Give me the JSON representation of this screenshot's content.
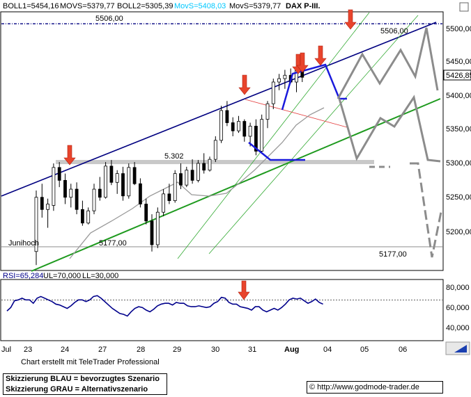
{
  "header": {
    "boll1": "BOLL1=5454,16",
    "movs1": "MOVS=5379,77",
    "boll2": "BOLL2=5305,39",
    "movs2": "MovS=5408,03",
    "movs3": "MovS=5379,77",
    "title": "DAX P-III."
  },
  "colors": {
    "blue_scenario": "#1a1adc",
    "grey_scenario": "#8c8c8c",
    "trend_navy": "#000080",
    "trend_green": "#1e9a1e",
    "channel_green": "#33aa33",
    "arrow_red": "#e8442c",
    "movs_cyan": "#00c8ff",
    "rsi_line": "#00008b"
  },
  "chart_data": [
    {
      "type": "candlestick",
      "title": "DAX P-III.",
      "y_axis_side": "right",
      "yticks": [
        "5500,00",
        "5450,00",
        "5400,00",
        "5350,00",
        "5300,00",
        "5250,00",
        "5200,00"
      ],
      "ylim": [
        5150,
        5515
      ],
      "current_price": "5426,85",
      "x_tick_labels": [
        "Jul",
        "23",
        "24",
        "27",
        "28",
        "29",
        "30",
        "31",
        "Aug",
        "04",
        "05",
        "06"
      ],
      "annotations": {
        "level_5506": "5506,00",
        "level_5506_right": "5506,00",
        "level_5302": "5.302",
        "level_5177": "5177,00",
        "level_5177_right": "5177,00",
        "junihoch": "Junihoch"
      },
      "levels": {
        "resistance_top": 5506,
        "support_mid": 5302,
        "junihoch": 5177
      },
      "candles": [
        {
          "d": "23.07",
          "o": 5170,
          "h": 5260,
          "l": 5150,
          "c": 5250
        },
        {
          "d": "23.07",
          "o": 5250,
          "h": 5270,
          "l": 5220,
          "c": 5232
        },
        {
          "d": "23.07",
          "o": 5232,
          "h": 5248,
          "l": 5205,
          "c": 5240
        },
        {
          "d": "24.07",
          "o": 5238,
          "h": 5300,
          "l": 5230,
          "c": 5294
        },
        {
          "d": "24.07",
          "o": 5294,
          "h": 5302,
          "l": 5265,
          "c": 5275
        },
        {
          "d": "24.07",
          "o": 5275,
          "h": 5285,
          "l": 5240,
          "c": 5250
        },
        {
          "d": "24.07",
          "o": 5250,
          "h": 5270,
          "l": 5235,
          "c": 5262
        },
        {
          "d": "24.07",
          "o": 5262,
          "h": 5272,
          "l": 5225,
          "c": 5232
        },
        {
          "d": "27.07",
          "o": 5232,
          "h": 5245,
          "l": 5208,
          "c": 5212
        },
        {
          "d": "27.07",
          "o": 5212,
          "h": 5235,
          "l": 5210,
          "c": 5230
        },
        {
          "d": "27.07",
          "o": 5230,
          "h": 5270,
          "l": 5225,
          "c": 5262
        },
        {
          "d": "27.07",
          "o": 5262,
          "h": 5280,
          "l": 5245,
          "c": 5250
        },
        {
          "d": "27.07",
          "o": 5250,
          "h": 5302,
          "l": 5248,
          "c": 5296
        },
        {
          "d": "28.07",
          "o": 5296,
          "h": 5305,
          "l": 5268,
          "c": 5272
        },
        {
          "d": "28.07",
          "o": 5272,
          "h": 5290,
          "l": 5255,
          "c": 5285
        },
        {
          "d": "28.07",
          "o": 5285,
          "h": 5295,
          "l": 5245,
          "c": 5252
        },
        {
          "d": "28.07",
          "o": 5252,
          "h": 5300,
          "l": 5248,
          "c": 5294
        },
        {
          "d": "28.07",
          "o": 5294,
          "h": 5302,
          "l": 5268,
          "c": 5270
        },
        {
          "d": "28.07",
          "o": 5270,
          "h": 5278,
          "l": 5235,
          "c": 5240
        },
        {
          "d": "29.07",
          "o": 5240,
          "h": 5248,
          "l": 5210,
          "c": 5215
        },
        {
          "d": "29.07",
          "o": 5215,
          "h": 5225,
          "l": 5170,
          "c": 5180
        },
        {
          "d": "29.07",
          "o": 5180,
          "h": 5235,
          "l": 5175,
          "c": 5228
        },
        {
          "d": "29.07",
          "o": 5228,
          "h": 5262,
          "l": 5222,
          "c": 5255
        },
        {
          "d": "29.07",
          "o": 5255,
          "h": 5270,
          "l": 5240,
          "c": 5245
        },
        {
          "d": "29.07",
          "o": 5245,
          "h": 5290,
          "l": 5242,
          "c": 5285
        },
        {
          "d": "30.07",
          "o": 5285,
          "h": 5300,
          "l": 5262,
          "c": 5268
        },
        {
          "d": "30.07",
          "o": 5268,
          "h": 5295,
          "l": 5265,
          "c": 5290
        },
        {
          "d": "30.07",
          "o": 5290,
          "h": 5306,
          "l": 5270,
          "c": 5275
        },
        {
          "d": "30.07",
          "o": 5275,
          "h": 5305,
          "l": 5272,
          "c": 5300
        },
        {
          "d": "30.07",
          "o": 5300,
          "h": 5315,
          "l": 5285,
          "c": 5290
        },
        {
          "d": "30.07",
          "o": 5290,
          "h": 5310,
          "l": 5288,
          "c": 5306
        },
        {
          "d": "31.07",
          "o": 5306,
          "h": 5340,
          "l": 5302,
          "c": 5334
        },
        {
          "d": "31.07",
          "o": 5334,
          "h": 5385,
          "l": 5330,
          "c": 5378
        },
        {
          "d": "31.07",
          "o": 5378,
          "h": 5392,
          "l": 5355,
          "c": 5360
        },
        {
          "d": "31.07",
          "o": 5360,
          "h": 5368,
          "l": 5340,
          "c": 5348
        },
        {
          "d": "31.07",
          "o": 5348,
          "h": 5370,
          "l": 5345,
          "c": 5362
        },
        {
          "d": "31.07",
          "o": 5362,
          "h": 5365,
          "l": 5332,
          "c": 5340
        },
        {
          "d": "31.07",
          "o": 5340,
          "h": 5360,
          "l": 5325,
          "c": 5355
        },
        {
          "d": "03.08",
          "o": 5355,
          "h": 5365,
          "l": 5312,
          "c": 5318
        },
        {
          "d": "03.08",
          "o": 5318,
          "h": 5372,
          "l": 5315,
          "c": 5365
        },
        {
          "d": "03.08",
          "o": 5365,
          "h": 5392,
          "l": 5352,
          "c": 5388
        },
        {
          "d": "03.08",
          "o": 5388,
          "h": 5425,
          "l": 5380,
          "c": 5420
        },
        {
          "d": "03.08",
          "o": 5420,
          "h": 5432,
          "l": 5408,
          "c": 5425
        },
        {
          "d": "03.08",
          "o": 5425,
          "h": 5438,
          "l": 5410,
          "c": 5430
        },
        {
          "d": "03.08",
          "o": 5430,
          "h": 5440,
          "l": 5418,
          "c": 5420
        },
        {
          "d": "03.08",
          "o": 5420,
          "h": 5445,
          "l": 5405,
          "c": 5437
        },
        {
          "d": "04.08",
          "o": 5437,
          "h": 5446,
          "l": 5420,
          "c": 5427
        }
      ]
    },
    {
      "type": "line",
      "name": "RSI",
      "label": "RSI=65,284",
      "ul": "UL=70,000",
      "ll": "LL=30,000",
      "yticks": [
        "80,000",
        "60,000",
        "40,000"
      ],
      "ylim": [
        25,
        95
      ],
      "values": [
        57,
        61,
        69,
        70,
        72,
        70,
        70,
        66,
        72,
        74,
        72,
        70,
        68,
        65,
        64,
        62,
        60,
        63,
        67,
        70,
        70,
        68,
        70,
        74,
        75,
        72,
        68,
        64,
        60,
        57,
        54,
        53,
        51,
        56,
        60,
        62,
        61,
        58,
        56,
        59,
        63,
        65,
        66,
        66,
        64,
        67,
        66,
        66,
        63,
        62,
        62,
        63,
        62,
        61,
        62,
        66,
        68,
        73,
        72,
        67,
        65,
        65,
        62,
        61,
        60,
        58,
        62,
        62,
        58,
        56,
        58,
        60,
        58,
        61,
        65,
        70,
        72,
        71,
        72,
        69,
        66,
        68,
        71,
        67,
        65
      ]
    }
  ],
  "footer": {
    "credit": "Chart erstellt mit TeleTrader Professional",
    "legend_line1": "Skizzierung BLAU = bevorzugtes Szenario",
    "legend_line2": "Skizzierung GRAU = Alternativszenario",
    "copyright": "© http://www.godmode-trader.de"
  }
}
